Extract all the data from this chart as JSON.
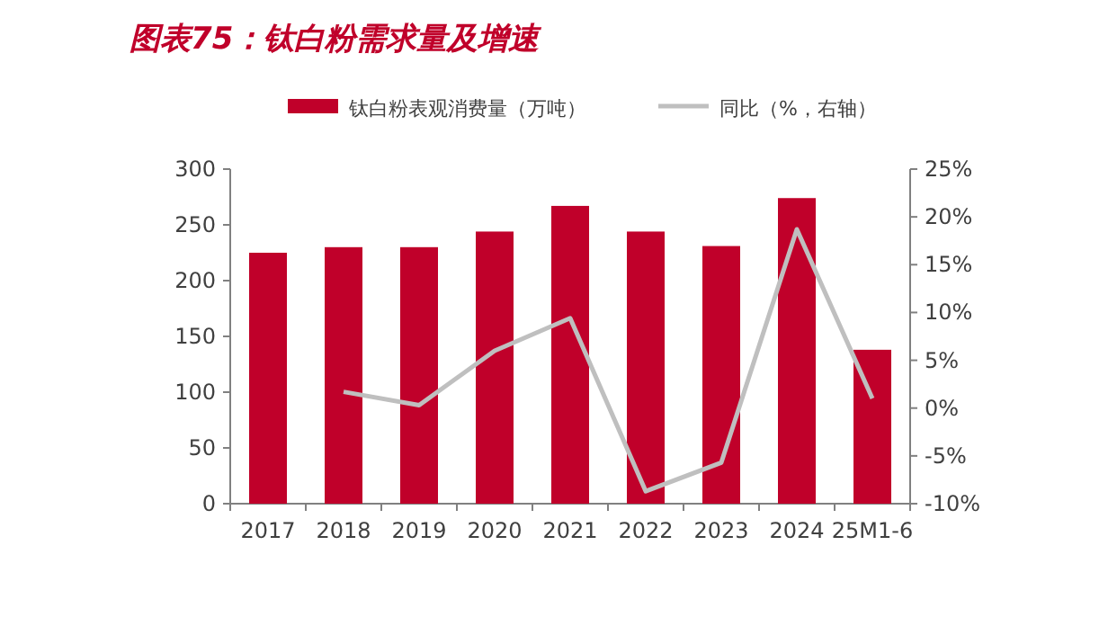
{
  "chart_data": {
    "type": "bar",
    "title": "图表75：钛白粉需求量及增速",
    "categories": [
      "2017",
      "2018",
      "2019",
      "2020",
      "2021",
      "2022",
      "2023",
      "2024",
      "25M1-6"
    ],
    "series": [
      {
        "name": "钛白粉表观消费量（万吨）",
        "color": "#c0002a",
        "values": [
          225,
          230,
          230,
          244,
          267,
          244,
          231,
          274,
          138
        ]
      },
      {
        "name": "同比（%，右轴）",
        "type": "line",
        "axis": "y2",
        "color": "#bfbfbf",
        "values": [
          null,
          1.7,
          0.3,
          6.0,
          9.4,
          -8.7,
          -5.7,
          18.7,
          1.0
        ]
      }
    ],
    "ylim": [
      0,
      300
    ],
    "yticks": [
      0,
      50,
      100,
      150,
      200,
      250,
      300
    ],
    "y2lim": [
      -10,
      25
    ],
    "y2ticks": [
      {
        "value": -10,
        "label": "-10%"
      },
      {
        "value": -5,
        "label": "-5%"
      },
      {
        "value": 0,
        "label": "0%"
      },
      {
        "value": 5,
        "label": "5%"
      },
      {
        "value": 10,
        "label": "10%"
      },
      {
        "value": 15,
        "label": "15%"
      },
      {
        "value": 20,
        "label": "20%"
      },
      {
        "value": 25,
        "label": "25%"
      }
    ],
    "legend": "top",
    "grid": false,
    "marker": "none"
  }
}
